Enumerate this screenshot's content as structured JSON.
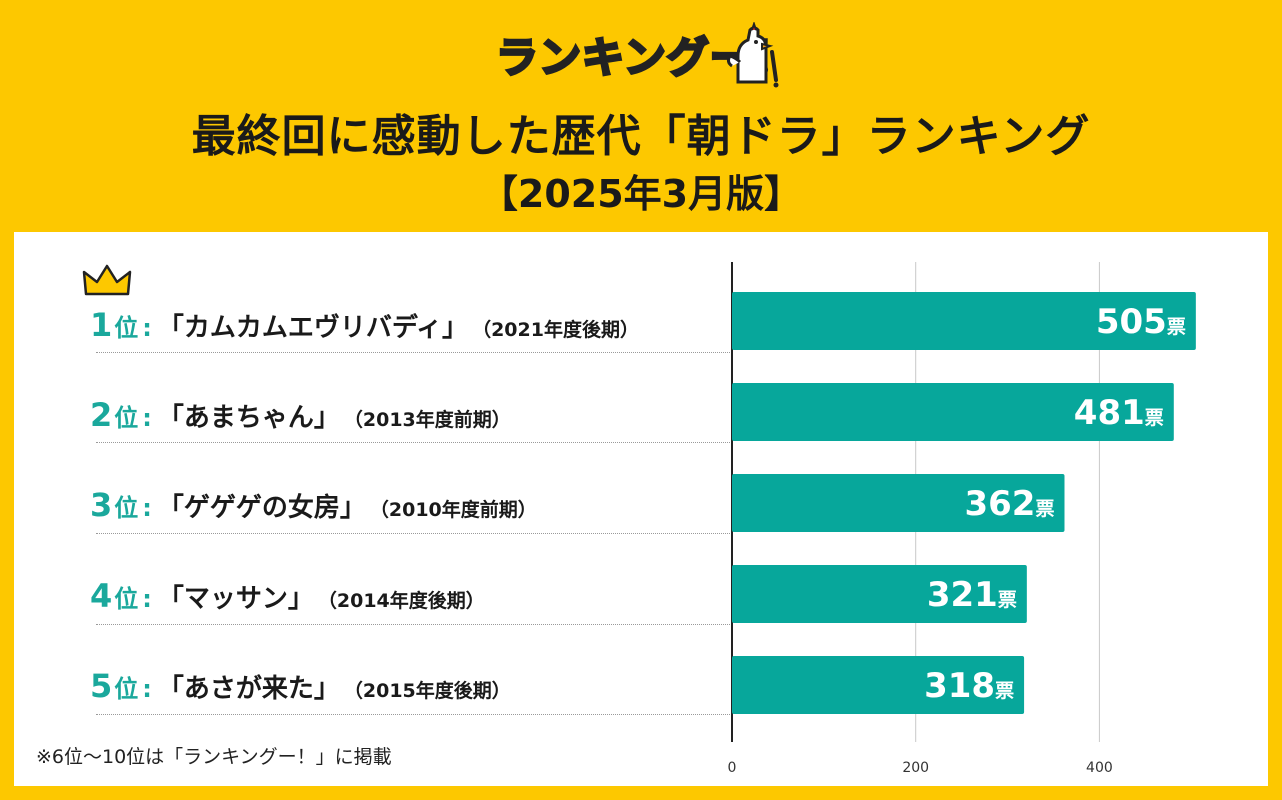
{
  "brand": {
    "logo_text": "ランキングー！"
  },
  "title": "最終回に感動した歴代「朝ドラ」ランキング",
  "subtitle": "【2025年3月版】",
  "rankings": [
    {
      "rank": "1",
      "suffix": "位",
      "colon": ":",
      "title": "「カムカムエヴリバディ」",
      "period": "（2021年度後期）"
    },
    {
      "rank": "2",
      "suffix": "位",
      "colon": ":",
      "title": "「あまちゃん」",
      "period": "（2013年度前期）"
    },
    {
      "rank": "3",
      "suffix": "位",
      "colon": ":",
      "title": "「ゲゲゲの女房」",
      "period": "（2010年度前期）"
    },
    {
      "rank": "4",
      "suffix": "位",
      "colon": ":",
      "title": "「マッサン」",
      "period": "（2014年度後期）"
    },
    {
      "rank": "5",
      "suffix": "位",
      "colon": ":",
      "title": "「あさが来た」",
      "period": "（2015年度後期）"
    }
  ],
  "footnote": "※6位〜10位は「ランキングー！」に掲載",
  "colors": {
    "background": "#fdc800",
    "bar": "#07a79b",
    "accent": "#1aa89c",
    "crown": "#fdc800"
  },
  "chart_data": {
    "type": "bar",
    "orientation": "horizontal",
    "categories": [
      "カムカムエヴリバディ",
      "あまちゃん",
      "ゲゲゲの女房",
      "マッサン",
      "あさが来た"
    ],
    "values": [
      505,
      481,
      362,
      321,
      318
    ],
    "value_unit": "票",
    "xlim": [
      0,
      505
    ],
    "xticks": [
      0,
      200,
      400
    ],
    "grid": true
  }
}
